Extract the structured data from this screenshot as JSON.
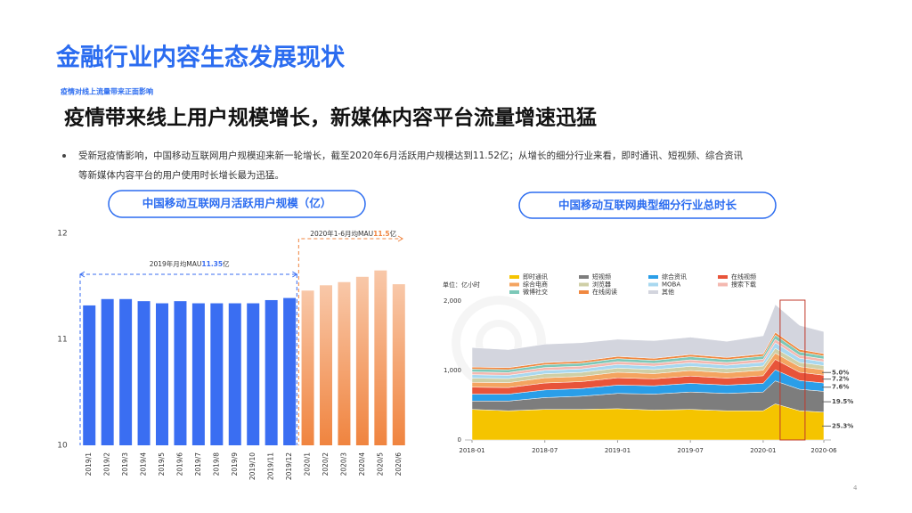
{
  "header": {
    "title": "金融行业内容生态发展现状",
    "subtitle": "疫情对线上流量带来正面影响",
    "headline": "疫情带来线上用户规模增长，新媒体内容平台流量增速迅猛"
  },
  "bullet": {
    "lines": [
      "受新冠疫情影响，中国移动互联网用户规模迎来新一轮增长，截至2020年6月活跃用户规模达到11.52亿；从增长的细分行业来看，即时通讯、短视频、综合资讯",
      "等新媒体内容平台的用户使用时长增长最为迅猛。"
    ]
  },
  "page_number": "4",
  "chart_data": [
    {
      "type": "bar",
      "title": "中国移动互联网月活跃用户规模（亿）",
      "categories": [
        "2019/1",
        "2019/2",
        "2019/3",
        "2019/4",
        "2019/5",
        "2019/6",
        "2019/7",
        "2019/8",
        "2019/9",
        "2019/10",
        "2019/11",
        "2019/12",
        "2020/1",
        "2020/2",
        "2020/3",
        "2020/4",
        "2020/5",
        "2020/6"
      ],
      "values": [
        11.32,
        11.38,
        11.38,
        11.36,
        11.34,
        11.36,
        11.34,
        11.34,
        11.34,
        11.34,
        11.37,
        11.39,
        11.46,
        11.51,
        11.54,
        11.59,
        11.65,
        11.52
      ],
      "colors": [
        "#3a6ef2",
        "#3a6ef2",
        "#3a6ef2",
        "#3a6ef2",
        "#3a6ef2",
        "#3a6ef2",
        "#3a6ef2",
        "#3a6ef2",
        "#3a6ef2",
        "#3a6ef2",
        "#3a6ef2",
        "#3a6ef2",
        "#f0843f",
        "#f0843f",
        "#f0843f",
        "#f0843f",
        "#f0843f",
        "#f0843f"
      ],
      "ylim": [
        10,
        12
      ],
      "yticks": [
        10,
        11,
        12
      ],
      "annotations": [
        {
          "prefix": "2019年月均MAU",
          "value": "11.35",
          "suffix": "亿",
          "color": "#3a6ef2"
        },
        {
          "prefix": "2020年1-6月均MAU",
          "value": "11.5",
          "suffix": "亿",
          "color": "#f0843f"
        }
      ]
    },
    {
      "type": "stacked_area",
      "title": "中国移动互联网典型细分行业总时长",
      "y_unit": "单位：亿小时",
      "x": [
        "2018-01",
        "2018-04",
        "2018-07",
        "2018-10",
        "2019-01",
        "2019-04",
        "2019-07",
        "2019-10",
        "2020-01",
        "2020-02",
        "2020-04",
        "2020-06"
      ],
      "xticks": [
        "2018-01",
        "2018-07",
        "2019-01",
        "2019-07",
        "2020-01",
        "2020-06"
      ],
      "ylim": [
        0,
        2000
      ],
      "yticks": [
        0,
        {
          "value": 1000,
          "label": "1,000"
        },
        {
          "value": 2000,
          "label": "2,000"
        }
      ],
      "series": [
        {
          "name": "即时通讯",
          "color": "#f5c400",
          "values": [
            440,
            420,
            440,
            440,
            450,
            430,
            440,
            420,
            420,
            520,
            420,
            400
          ],
          "share_label": "25.3%"
        },
        {
          "name": "短视频",
          "color": "#7d7d7d",
          "values": [
            120,
            140,
            170,
            190,
            220,
            230,
            250,
            250,
            270,
            330,
            310,
            300
          ],
          "share_label": "19.5%"
        },
        {
          "name": "综合资讯",
          "color": "#2a9ee8",
          "values": [
            100,
            100,
            110,
            110,
            120,
            120,
            125,
            120,
            125,
            160,
            125,
            120
          ],
          "share_label": "7.6%"
        },
        {
          "name": "在线视频",
          "color": "#e8543a",
          "values": [
            100,
            95,
            100,
            100,
            105,
            100,
            105,
            100,
            110,
            150,
            120,
            112
          ],
          "share_label": "7.2%"
        },
        {
          "name": "综合电商",
          "color": "#f4a460",
          "values": [
            70,
            70,
            75,
            75,
            80,
            75,
            80,
            78,
            80,
            90,
            80,
            78
          ],
          "share_label": "5.0%"
        },
        {
          "name": "浏览器",
          "color": "#cfcfa6",
          "values": [
            60,
            58,
            58,
            58,
            60,
            58,
            60,
            58,
            60,
            70,
            62,
            60
          ]
        },
        {
          "name": "MOBA",
          "color": "#a8d8f0",
          "values": [
            50,
            48,
            50,
            50,
            52,
            50,
            52,
            50,
            55,
            80,
            60,
            55
          ]
        },
        {
          "name": "搜索下载",
          "color": "#f4b8b0",
          "values": [
            40,
            40,
            40,
            40,
            42,
            40,
            42,
            40,
            42,
            50,
            42,
            40
          ]
        },
        {
          "name": "微博社交",
          "color": "#7cc8b8",
          "values": [
            40,
            40,
            40,
            42,
            42,
            42,
            44,
            42,
            45,
            60,
            50,
            45
          ]
        },
        {
          "name": "在线阅读",
          "color": "#f08840",
          "values": [
            30,
            30,
            30,
            30,
            32,
            30,
            32,
            30,
            32,
            40,
            35,
            32
          ]
        },
        {
          "name": "其他",
          "color": "#d3d5de",
          "values": [
            280,
            259,
            267,
            265,
            247,
            255,
            250,
            232,
            261,
            400,
            346,
            318
          ]
        }
      ]
    }
  ]
}
